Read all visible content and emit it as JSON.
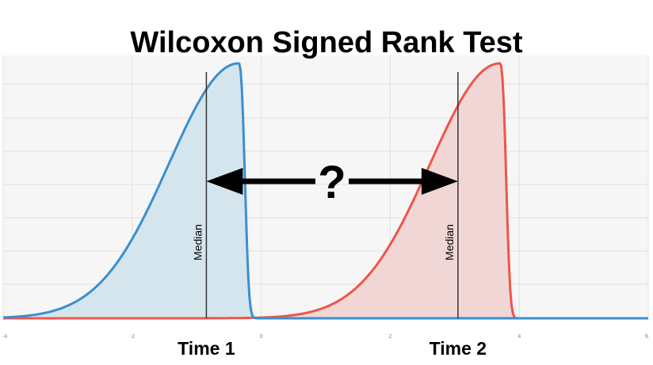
{
  "title": "Wilcoxon Signed Rank Test",
  "question_mark": "?",
  "x_axis": {
    "ticks": [
      {
        "value": -4,
        "label": "-4"
      },
      {
        "value": -2,
        "label": "-2"
      },
      {
        "value": 0,
        "label": "0"
      },
      {
        "value": 2,
        "label": "2"
      },
      {
        "value": 4,
        "label": "4"
      },
      {
        "value": 6,
        "label": "6"
      }
    ]
  },
  "distributions": [
    {
      "id": "time1",
      "label": "Time 1",
      "median_label": "Median",
      "color": "#3a8fd0",
      "fill": "#d5e5ee",
      "median": -0.85,
      "mode": -0.35
    },
    {
      "id": "time2",
      "label": "Time 2",
      "median_label": "Median",
      "color": "#ef5548",
      "fill": "#f0d7d5",
      "median": 3.05,
      "mode": 3.7
    }
  ],
  "colors": {
    "background": "#ffffff",
    "plot_background": "#f6f6f6",
    "grid": "#e0e0e0",
    "median_line": "#333333",
    "arrow": "#000000"
  }
}
